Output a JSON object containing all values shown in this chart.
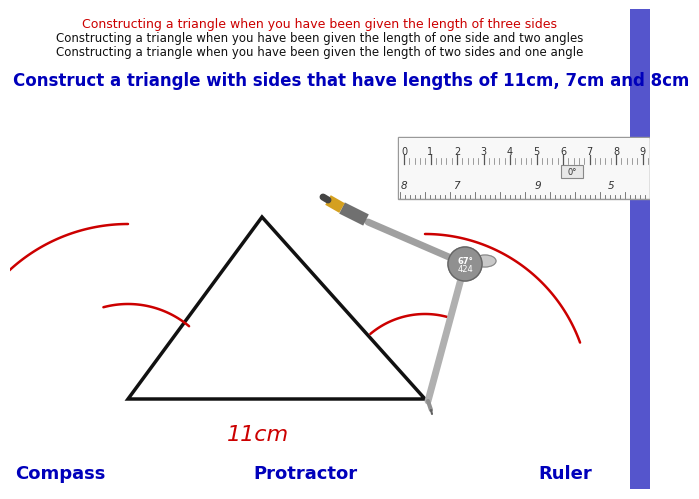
{
  "title_red": "Constructing a triangle when you have been given the length of three sides",
  "title_black1": "Constructing a triangle when you have been given the length of one side and two angles",
  "title_black2": "Constructing a triangle when you have been given the length of two sides and one angle",
  "subtitle": "Construct a triangle with sides that have lengths of 11cm, 7cm and 8cm",
  "label_11cm": "11cm",
  "label_compass": "Compass",
  "label_protractor": "Protractor",
  "label_ruler": "Ruler",
  "bg_color": "#ffffff",
  "title_red_color": "#cc0000",
  "title_black_color": "#111111",
  "subtitle_color": "#0000bb",
  "label_bottom_color": "#0000bb",
  "triangle_color": "#111111",
  "arc_color": "#cc0000",
  "ruler_bg": "#eeeeee",
  "ruler_border": "#999999",
  "blue_bar_color": "#5555cc",
  "compass_arm_color": "#b0b0b0",
  "hinge_color": "#888888",
  "needle_color": "#aaaaaa",
  "pencil_gray": "#808080",
  "pencil_tan": "#D4A020",
  "pencil_dark": "#444444"
}
